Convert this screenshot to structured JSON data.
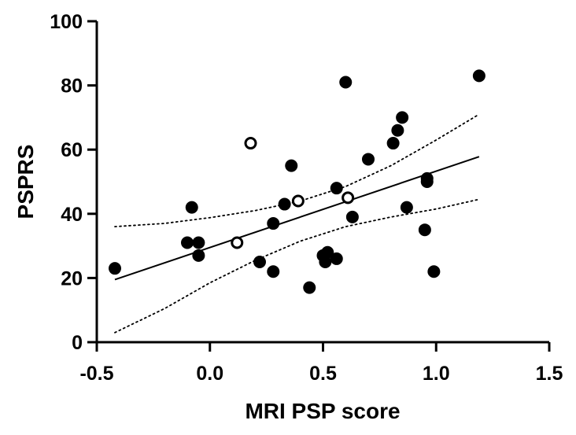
{
  "chart_data": {
    "type": "scatter",
    "title": "",
    "xlabel": "MRI PSP score",
    "ylabel": "PSPRS",
    "xlim": [
      -0.5,
      1.5
    ],
    "ylim": [
      0,
      100
    ],
    "x_ticks": [
      -0.5,
      0.0,
      0.5,
      1.0,
      1.5
    ],
    "x_tick_labels": [
      "-0.5",
      "0.0",
      "0.5",
      "1.0",
      "1.5"
    ],
    "y_ticks": [
      0,
      20,
      40,
      60,
      80,
      100
    ],
    "y_tick_labels": [
      "0",
      "20",
      "40",
      "60",
      "80",
      "100"
    ],
    "grid": false,
    "legend": "none",
    "series": [
      {
        "marker": "filled-circle",
        "color": "#000000",
        "points": [
          [
            -0.42,
            23
          ],
          [
            -0.1,
            31
          ],
          [
            -0.08,
            42
          ],
          [
            -0.05,
            31
          ],
          [
            -0.05,
            27
          ],
          [
            0.22,
            25
          ],
          [
            0.28,
            37
          ],
          [
            0.28,
            22
          ],
          [
            0.33,
            43
          ],
          [
            0.36,
            55
          ],
          [
            0.44,
            17
          ],
          [
            0.5,
            27
          ],
          [
            0.51,
            25
          ],
          [
            0.52,
            28
          ],
          [
            0.56,
            26
          ],
          [
            0.56,
            48
          ],
          [
            0.6,
            81
          ],
          [
            0.63,
            39
          ],
          [
            0.7,
            57
          ],
          [
            0.81,
            62
          ],
          [
            0.83,
            66
          ],
          [
            0.85,
            70
          ],
          [
            0.87,
            42
          ],
          [
            0.95,
            35
          ],
          [
            0.96,
            50
          ],
          [
            0.96,
            51
          ],
          [
            0.99,
            22
          ],
          [
            1.19,
            83
          ]
        ]
      },
      {
        "marker": "open-circle",
        "color": "#000000",
        "points": [
          [
            0.12,
            31
          ],
          [
            0.18,
            62
          ],
          [
            0.39,
            44
          ],
          [
            0.61,
            45
          ]
        ]
      }
    ],
    "fit_line": {
      "x": [
        -0.42,
        1.19
      ],
      "y": [
        19.5,
        57.8
      ],
      "style": "solid"
    },
    "confidence_band_upper": {
      "style": "dotted",
      "points": [
        [
          -0.42,
          36
        ],
        [
          -0.2,
          37
        ],
        [
          0.0,
          38.8
        ],
        [
          0.2,
          41
        ],
        [
          0.4,
          44
        ],
        [
          0.6,
          48.5
        ],
        [
          0.8,
          55
        ],
        [
          1.0,
          63
        ],
        [
          1.19,
          71
        ]
      ]
    },
    "confidence_band_lower": {
      "style": "dotted",
      "points": [
        [
          -0.42,
          3
        ],
        [
          -0.2,
          10.5
        ],
        [
          0.0,
          18.5
        ],
        [
          0.2,
          25.5
        ],
        [
          0.4,
          31.5
        ],
        [
          0.6,
          36
        ],
        [
          0.8,
          39
        ],
        [
          1.0,
          41.5
        ],
        [
          1.19,
          44.5
        ]
      ]
    }
  }
}
